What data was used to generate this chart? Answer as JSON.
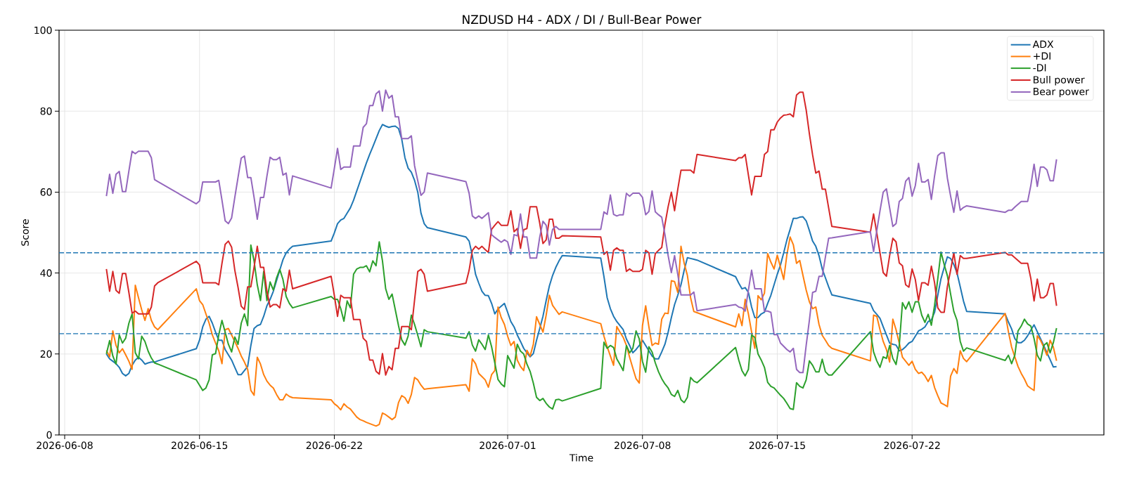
{
  "chart_data": {
    "type": "line",
    "title": "NZDUSD H4 - ADX / DI / Bull-Bear Power",
    "xlabel": "Time",
    "ylabel": "Score",
    "x": [
      "2026-06-10T04:00",
      "2026-06-10T08:00",
      "2026-06-10T12:00",
      "2026-06-10T16:00",
      "2026-06-10T20:00",
      "2026-06-11T00:00",
      "2026-06-11T04:00",
      "2026-06-11T08:00",
      "2026-06-11T12:00",
      "2026-06-11T16:00",
      "2026-06-11T20:00",
      "2026-06-12T00:00",
      "2026-06-12T04:00",
      "2026-06-12T08:00",
      "2026-06-12T12:00",
      "2026-06-12T16:00",
      "2026-06-12T20:00",
      "2026-06-14T20:00",
      "2026-06-15T00:00",
      "2026-06-15T04:00",
      "2026-06-15T08:00",
      "2026-06-15T12:00",
      "2026-06-15T16:00",
      "2026-06-15T20:00",
      "2026-06-16T00:00",
      "2026-06-16T04:00",
      "2026-06-16T08:00",
      "2026-06-16T12:00",
      "2026-06-16T16:00",
      "2026-06-16T20:00",
      "2026-06-17T00:00",
      "2026-06-17T04:00",
      "2026-06-17T08:00",
      "2026-06-17T12:00",
      "2026-06-17T16:00",
      "2026-06-17T20:00",
      "2026-06-18T00:00",
      "2026-06-18T04:00",
      "2026-06-18T08:00",
      "2026-06-18T12:00",
      "2026-06-18T16:00",
      "2026-06-18T20:00",
      "2026-06-19T00:00",
      "2026-06-19T04:00",
      "2026-06-19T08:00",
      "2026-06-19T12:00",
      "2026-06-19T16:00",
      "2026-06-19T20:00",
      "2026-06-21T20:00",
      "2026-06-22T00:00",
      "2026-06-22T04:00",
      "2026-06-22T08:00",
      "2026-06-22T12:00",
      "2026-06-22T16:00",
      "2026-06-22T20:00",
      "2026-06-23T00:00",
      "2026-06-23T04:00",
      "2026-06-23T08:00",
      "2026-06-23T12:00",
      "2026-06-23T16:00",
      "2026-06-23T20:00",
      "2026-06-24T00:00",
      "2026-06-24T04:00",
      "2026-06-24T08:00",
      "2026-06-24T12:00",
      "2026-06-24T16:00",
      "2026-06-24T20:00",
      "2026-06-25T00:00",
      "2026-06-25T04:00",
      "2026-06-25T08:00",
      "2026-06-25T12:00",
      "2026-06-25T16:00",
      "2026-06-25T20:00",
      "2026-06-26T00:00",
      "2026-06-26T04:00",
      "2026-06-26T08:00",
      "2026-06-26T12:00",
      "2026-06-26T16:00",
      "2026-06-26T20:00",
      "2026-06-28T20:00",
      "2026-06-29T00:00",
      "2026-06-29T04:00",
      "2026-06-29T08:00",
      "2026-06-29T12:00",
      "2026-06-29T16:00",
      "2026-06-29T20:00",
      "2026-06-30T00:00",
      "2026-06-30T04:00",
      "2026-06-30T08:00",
      "2026-06-30T12:00",
      "2026-06-30T16:00",
      "2026-06-30T20:00",
      "2026-07-01T00:00",
      "2026-07-01T04:00",
      "2026-07-01T08:00",
      "2026-07-01T12:00",
      "2026-07-01T16:00",
      "2026-07-01T20:00",
      "2026-07-02T00:00",
      "2026-07-02T04:00",
      "2026-07-02T08:00",
      "2026-07-02T12:00",
      "2026-07-02T16:00",
      "2026-07-02T20:00",
      "2026-07-03T00:00",
      "2026-07-03T04:00",
      "2026-07-03T08:00",
      "2026-07-03T12:00",
      "2026-07-03T16:00",
      "2026-07-03T20:00",
      "2026-07-05T20:00",
      "2026-07-06T00:00",
      "2026-07-06T04:00",
      "2026-07-06T08:00",
      "2026-07-06T12:00",
      "2026-07-06T16:00",
      "2026-07-06T20:00",
      "2026-07-07T00:00",
      "2026-07-07T04:00",
      "2026-07-07T08:00",
      "2026-07-07T12:00",
      "2026-07-07T16:00",
      "2026-07-07T20:00",
      "2026-07-08T00:00",
      "2026-07-08T04:00",
      "2026-07-08T08:00",
      "2026-07-08T12:00",
      "2026-07-08T16:00",
      "2026-07-08T20:00",
      "2026-07-09T00:00",
      "2026-07-09T04:00",
      "2026-07-09T08:00",
      "2026-07-09T12:00",
      "2026-07-09T16:00",
      "2026-07-09T20:00",
      "2026-07-10T00:00",
      "2026-07-10T04:00",
      "2026-07-10T08:00",
      "2026-07-10T12:00",
      "2026-07-10T16:00",
      "2026-07-10T20:00",
      "2026-07-12T20:00",
      "2026-07-13T00:00",
      "2026-07-13T04:00",
      "2026-07-13T08:00",
      "2026-07-13T12:00",
      "2026-07-13T16:00",
      "2026-07-13T20:00",
      "2026-07-14T00:00",
      "2026-07-14T04:00",
      "2026-07-14T08:00",
      "2026-07-14T12:00",
      "2026-07-14T16:00",
      "2026-07-14T20:00",
      "2026-07-15T00:00",
      "2026-07-15T04:00",
      "2026-07-15T08:00",
      "2026-07-15T12:00",
      "2026-07-15T16:00",
      "2026-07-15T20:00",
      "2026-07-16T00:00",
      "2026-07-16T04:00",
      "2026-07-16T08:00",
      "2026-07-16T12:00",
      "2026-07-16T16:00",
      "2026-07-16T20:00",
      "2026-07-17T00:00",
      "2026-07-17T04:00",
      "2026-07-17T08:00",
      "2026-07-17T12:00",
      "2026-07-17T16:00",
      "2026-07-17T20:00",
      "2026-07-19T20:00",
      "2026-07-20T00:00",
      "2026-07-20T04:00",
      "2026-07-20T08:00",
      "2026-07-20T12:00",
      "2026-07-20T16:00",
      "2026-07-20T20:00",
      "2026-07-21T00:00",
      "2026-07-21T04:00",
      "2026-07-21T08:00",
      "2026-07-21T12:00",
      "2026-07-21T16:00",
      "2026-07-21T20:00",
      "2026-07-22T00:00",
      "2026-07-22T04:00",
      "2026-07-22T08:00",
      "2026-07-22T12:00",
      "2026-07-22T16:00",
      "2026-07-22T20:00",
      "2026-07-23T00:00",
      "2026-07-23T04:00",
      "2026-07-23T08:00",
      "2026-07-23T12:00",
      "2026-07-23T16:00",
      "2026-07-23T20:00",
      "2026-07-24T00:00",
      "2026-07-24T04:00",
      "2026-07-24T08:00",
      "2026-07-24T12:00",
      "2026-07-24T16:00",
      "2026-07-24T20:00",
      "2026-07-26T20:00",
      "2026-07-27T00:00",
      "2026-07-27T04:00",
      "2026-07-27T08:00",
      "2026-07-27T12:00",
      "2026-07-27T16:00",
      "2026-07-27T20:00",
      "2026-07-28T00:00",
      "2026-07-28T04:00",
      "2026-07-28T08:00",
      "2026-07-28T12:00",
      "2026-07-28T16:00",
      "2026-07-28T20:00",
      "2026-07-29T00:00",
      "2026-07-29T04:00",
      "2026-07-29T08:00",
      "2026-07-29T12:00"
    ],
    "series": [
      {
        "name": "ADX",
        "color": "#1f77b4",
        "values": [
          20,
          18.8,
          18.2,
          17.6,
          16.7,
          15.2,
          14.6,
          15.2,
          17.2,
          18.5,
          19.2,
          18.5,
          17.5,
          17.8,
          18,
          18,
          18.3,
          21.3,
          23.4,
          26.7,
          28.6,
          29.3,
          27.6,
          25.4,
          23.4,
          23.4,
          21.1,
          19.8,
          18.5,
          16.7,
          14.9,
          14.9,
          15.9,
          16.9,
          22.1,
          26.3,
          27,
          27.3,
          29.3,
          31.9,
          33.5,
          35.5,
          38.1,
          40.7,
          43.3,
          45,
          45.9,
          46.6,
          47.9,
          49.9,
          52.2,
          53.1,
          53.5,
          54.8,
          56.1,
          58,
          60.3,
          62.6,
          64.9,
          67.2,
          69.3,
          71.2,
          73.2,
          75.2,
          76.7,
          76.3,
          76,
          76.2,
          76.3,
          75.7,
          73.1,
          68.5,
          65.9,
          64.9,
          62.9,
          60,
          54.8,
          52.2,
          51.2,
          48.9,
          47.9,
          44.3,
          39.7,
          37.5,
          35.5,
          34.5,
          34.4,
          32.5,
          29.9,
          31.1,
          31.8,
          32.5,
          30.3,
          28,
          26.7,
          24.7,
          23.1,
          21.4,
          20.3,
          19.3,
          20.1,
          23.4,
          26.3,
          29.3,
          33.2,
          36.8,
          39.4,
          41.4,
          43,
          44.3,
          43.7,
          39.1,
          33.9,
          31.2,
          29.3,
          28,
          27,
          26,
          23.7,
          22.1,
          20.3,
          21.1,
          22.1,
          23.4,
          22.1,
          20.8,
          19.5,
          18.8,
          18.8,
          20.5,
          22.4,
          25.4,
          29,
          32.2,
          34.5,
          37.1,
          40.7,
          43.8,
          43.6,
          43.4,
          43.2,
          39.1,
          37.5,
          36.1,
          36.4,
          35.2,
          31.6,
          29,
          29,
          29.9,
          30.3,
          32.5,
          34.5,
          37.1,
          39.7,
          42,
          45,
          48.2,
          50.8,
          53.5,
          53.5,
          53.8,
          53.9,
          52.9,
          50.5,
          47.9,
          46.6,
          44.3,
          41,
          38.8,
          36.6,
          34.6,
          32.5,
          30.7,
          29.8,
          28.8,
          26.7,
          24.7,
          22.7,
          22.4,
          22.2,
          20.8,
          21.1,
          21.8,
          22.7,
          23.1,
          24.4,
          25.7,
          26.1,
          26.7,
          28,
          28.4,
          30.3,
          34.5,
          38.6,
          41.4,
          44,
          43.6,
          42.1,
          40,
          36.6,
          33.1,
          30.5,
          29.9,
          27.9,
          26.2,
          23.8,
          22.8,
          22.8,
          23.4,
          24.5,
          25.9,
          27.2,
          25.5,
          23.8,
          22.1,
          20.3,
          18.6,
          16.8,
          16.9
        ]
      },
      {
        "name": "+DI",
        "color": "#ff7f0e",
        "values": [
          20.9,
          19.3,
          25.7,
          22.1,
          20.3,
          21.3,
          19.8,
          18.2,
          16.2,
          37,
          33.9,
          30.9,
          28.3,
          31.2,
          28.3,
          26.7,
          26,
          36.1,
          33.2,
          32.2,
          29.9,
          27.6,
          24.7,
          22.7,
          20.8,
          17.6,
          26,
          26.3,
          24.7,
          23.1,
          21.4,
          19.5,
          18,
          16.2,
          11,
          9.8,
          19.2,
          17.5,
          14.9,
          13.3,
          12.3,
          11.6,
          10,
          8.7,
          8.7,
          10.1,
          9.5,
          9.2,
          8.7,
          7.7,
          7.1,
          6.2,
          7.7,
          6.9,
          6.4,
          5.4,
          4.4,
          3.8,
          3.5,
          3.1,
          2.8,
          2.5,
          2.2,
          2.6,
          5.4,
          5,
          4.4,
          3.8,
          4.4,
          8,
          9.7,
          9.2,
          7.8,
          10,
          14.2,
          13.6,
          12.3,
          11.3,
          11.4,
          12.4,
          10.8,
          18.8,
          17.6,
          15.2,
          14.4,
          13.6,
          11.8,
          14.9,
          15.9,
          31.6,
          29,
          27.3,
          24.4,
          22.1,
          23.1,
          18.5,
          16.9,
          15.9,
          20.9,
          19.5,
          22.4,
          29.2,
          27.3,
          25.4,
          29.6,
          34.5,
          32,
          30.9,
          29.8,
          30.4,
          27.5,
          24.4,
          21.8,
          19.5,
          17.2,
          26.8,
          25.4,
          24.1,
          22.1,
          19.2,
          16.5,
          13.9,
          12.8,
          27,
          31.9,
          26.7,
          22.1,
          22.7,
          22.4,
          28.6,
          30.1,
          30,
          38.1,
          37.9,
          35.2,
          46.6,
          42.4,
          39.4,
          33.9,
          30.5,
          30.2,
          26.7,
          29.9,
          27,
          33.5,
          29.9,
          25.4,
          21.4,
          34.4,
          33.4,
          35,
          44.8,
          42.7,
          41,
          44.4,
          41.4,
          38.4,
          44.6,
          48.9,
          47,
          42.4,
          43.1,
          39.4,
          35.8,
          32.9,
          31.2,
          31.6,
          27.3,
          24.6,
          23.4,
          22.1,
          21.4,
          18.3,
          29.6,
          29.3,
          26,
          23.1,
          21.1,
          18,
          28.6,
          26,
          22.7,
          19.2,
          18.2,
          17.2,
          18.2,
          16.2,
          15.2,
          15.5,
          14.6,
          13.2,
          14.7,
          11.7,
          9.7,
          7.9,
          7.5,
          7,
          14.5,
          16.4,
          15.2,
          20.8,
          18.9,
          18.1,
          30,
          25.5,
          21.7,
          19.3,
          16.9,
          15.2,
          13.8,
          12.1,
          11.5,
          11,
          24.5,
          23.4,
          21.7,
          19.7,
          23.4,
          21.7,
          18.3
        ]
      },
      {
        "name": "-DI",
        "color": "#2ca02c",
        "values": [
          20,
          23.3,
          19.5,
          17.5,
          24.7,
          22.7,
          23.9,
          27.6,
          29.9,
          20.3,
          18.8,
          24.4,
          23.1,
          20.7,
          19,
          17.8,
          17.5,
          13.6,
          12.3,
          11,
          11.6,
          13.6,
          19.8,
          20.1,
          24.7,
          28.3,
          25.4,
          22.4,
          20.5,
          24.2,
          22.4,
          27.6,
          29.9,
          27,
          46.9,
          43,
          37.1,
          33.2,
          40.4,
          33.2,
          37.8,
          35.8,
          38.8,
          40.9,
          38.4,
          34.2,
          32.5,
          31.4,
          34.2,
          33.5,
          33.5,
          31.2,
          28.1,
          33.1,
          31.4,
          39.7,
          41,
          41.4,
          41.4,
          41.8,
          40.3,
          43,
          41.8,
          47.7,
          43,
          36.1,
          33.5,
          34.8,
          30.9,
          27,
          23.5,
          22.2,
          24.4,
          29.6,
          27.3,
          24.6,
          21.8,
          26,
          25.5,
          23.9,
          25.5,
          22.2,
          20.7,
          23.5,
          22.4,
          21.1,
          24.7,
          21.8,
          17.8,
          13.7,
          12.6,
          11.9,
          19.6,
          18,
          16.5,
          22.4,
          20.7,
          20,
          17.5,
          15.7,
          12.8,
          9.3,
          8.5,
          9,
          7.8,
          6.9,
          6.4,
          8.7,
          8.8,
          8.4,
          11.5,
          22.9,
          21.4,
          22.1,
          21.6,
          18.8,
          17.4,
          15.9,
          22.1,
          20.3,
          21.4,
          25.7,
          23.7,
          18.2,
          15.5,
          21.8,
          20.5,
          17.8,
          15.6,
          13.9,
          12.6,
          11.6,
          10,
          9.5,
          11,
          8.7,
          8,
          9.3,
          14.2,
          13.3,
          12.9,
          21.6,
          18.5,
          15.9,
          14.6,
          16.2,
          24.7,
          24.1,
          20,
          18.5,
          16.7,
          13,
          12,
          11.6,
          10.7,
          9.8,
          9,
          7.8,
          6.5,
          6.3,
          12.9,
          12,
          11.6,
          13.6,
          18.3,
          17.2,
          15.6,
          15.6,
          18.7,
          15.6,
          14.8,
          14.8,
          25.5,
          20.5,
          18.3,
          16.7,
          19.3,
          18.9,
          22.1,
          18.9,
          17.4,
          22.1,
          32.7,
          31.1,
          32.9,
          30.3,
          32.9,
          32.9,
          29.6,
          27.8,
          29.8,
          27.1,
          32,
          38.6,
          45.2,
          42.1,
          39.3,
          34.8,
          30.5,
          28.3,
          23.1,
          20.7,
          21.5,
          18.4,
          19.7,
          17.6,
          19.7,
          25.7,
          26.9,
          28.6,
          27.4,
          26.9,
          23.8,
          19.7,
          18.3,
          22.1,
          22.8,
          20.3,
          22.8,
          26.4
        ]
      },
      {
        "name": "Bull power",
        "color": "#d62728",
        "values": [
          41,
          35.5,
          40.4,
          35.7,
          35,
          39.9,
          39.9,
          35.2,
          30.1,
          30.6,
          29.9,
          29.9,
          29.9,
          29.9,
          31.6,
          36.8,
          37.6,
          42.9,
          42,
          37.6,
          37.6,
          37.6,
          37.6,
          37.6,
          37.1,
          42.4,
          47.1,
          47.9,
          46.4,
          40.7,
          36.5,
          31.8,
          31,
          36.6,
          36.6,
          41.4,
          46.6,
          41.4,
          41.4,
          35.5,
          31.6,
          32.2,
          32.2,
          31.4,
          36.1,
          35.5,
          40.7,
          36.1,
          39.2,
          34.5,
          29.3,
          34.5,
          33.9,
          33.9,
          33.9,
          28.5,
          28.5,
          28.5,
          23.9,
          23.1,
          18.5,
          18.5,
          15.7,
          15,
          20.1,
          14.8,
          16.9,
          16.1,
          21.4,
          21.4,
          26.8,
          26.8,
          26.8,
          26,
          33.3,
          40.4,
          40.9,
          39.7,
          35.5,
          37.5,
          40.7,
          45.6,
          46.6,
          45.9,
          46.6,
          45.8,
          45.1,
          50.8,
          51.8,
          52.7,
          51.8,
          51.8,
          51.8,
          55.4,
          50.2,
          51,
          46.1,
          50.7,
          51,
          56.4,
          56.4,
          56.4,
          52.3,
          47.3,
          48.2,
          53.3,
          53.3,
          48.6,
          48.6,
          49.2,
          48.9,
          44.6,
          45.3,
          40.7,
          45.6,
          46.2,
          45.6,
          45.6,
          40.4,
          41,
          40.4,
          40.4,
          40.4,
          40.9,
          45.6,
          45,
          39.7,
          44.8,
          45.6,
          46.3,
          52,
          56.4,
          60,
          55.4,
          60.7,
          65.4,
          65.4,
          65.4,
          65.4,
          64.7,
          69.3,
          67.8,
          68.5,
          68.5,
          69.3,
          64.2,
          59.3,
          63.9,
          63.9,
          63.9,
          69.3,
          70,
          75.4,
          75.4,
          77.3,
          78.3,
          79,
          79.1,
          79.3,
          78.6,
          84,
          84.7,
          84.7,
          80.3,
          74.4,
          69.2,
          64.7,
          65.2,
          60.7,
          60.7,
          56.1,
          51.5,
          50.1,
          54.6,
          49.9,
          45,
          40.1,
          39.2,
          44.3,
          48.6,
          47.7,
          42.5,
          41.8,
          37.1,
          36.5,
          41,
          38.4,
          33.2,
          37.6,
          37.6,
          37,
          41.7,
          37.6,
          31.4,
          30.3,
          30.3,
          36.7,
          40.7,
          45,
          39.7,
          44.3,
          43.6,
          43.6,
          45.1,
          44.5,
          44.5,
          43.8,
          43.1,
          42.4,
          42.4,
          42.4,
          38.6,
          33.1,
          38.5,
          33.9,
          33.9,
          34.6,
          37.4,
          37.4,
          31.9
        ]
      },
      {
        "name": "Bear power",
        "color": "#9467bd",
        "values": [
          59,
          64.4,
          59.7,
          64.4,
          65.1,
          60.1,
          60.1,
          65.2,
          70.1,
          69.5,
          70.1,
          70.1,
          70.1,
          70.1,
          68.5,
          63.1,
          62.6,
          57.1,
          57.8,
          62.5,
          62.5,
          62.5,
          62.5,
          62.5,
          62.9,
          58,
          52.9,
          52.2,
          53.6,
          58.7,
          63.6,
          68.4,
          68.9,
          63.6,
          63.6,
          58.7,
          53.3,
          58.7,
          58.7,
          63.9,
          68.6,
          68,
          68,
          68.6,
          64.2,
          64.7,
          59.3,
          64,
          61,
          65.8,
          70.8,
          65.6,
          66.2,
          66.2,
          66.2,
          71.4,
          71.4,
          71.4,
          76,
          76.9,
          81.4,
          81.4,
          84.3,
          85,
          80,
          85.2,
          83.2,
          83.9,
          78.6,
          78.6,
          73.2,
          73.2,
          73.2,
          73.9,
          66.5,
          62.8,
          59.2,
          60,
          64.7,
          62.6,
          59.7,
          54.1,
          53.5,
          54.1,
          53.5,
          54.2,
          54.9,
          49.5,
          48.8,
          48.2,
          47.6,
          48.2,
          47.7,
          44.6,
          49.5,
          49.2,
          54.6,
          48.9,
          48.9,
          43.7,
          43.7,
          43.7,
          48.9,
          52.8,
          51.8,
          46.9,
          50.8,
          51.5,
          50.8,
          50.8,
          50.8,
          55.1,
          54.5,
          59.3,
          54.5,
          54.1,
          54.4,
          54.4,
          59.7,
          59,
          59.7,
          59.7,
          59.7,
          58.7,
          54.4,
          55.2,
          60.3,
          55.1,
          54.4,
          53.8,
          49.5,
          44.3,
          40.1,
          44.3,
          39.7,
          34.6,
          34.6,
          34.6,
          34.6,
          35.3,
          30.7,
          32.2,
          31.6,
          31.4,
          30.6,
          35.8,
          40.7,
          36.1,
          36.1,
          36.1,
          30.6,
          30.6,
          30.3,
          24.8,
          24.8,
          22.7,
          21.9,
          21.1,
          20.5,
          21.4,
          16.2,
          15.4,
          15.4,
          22.1,
          28.3,
          35.2,
          35.5,
          39.2,
          39.2,
          44,
          48.6,
          48.7,
          50.2,
          45.3,
          50.5,
          55.4,
          60,
          60.8,
          56.1,
          51.5,
          52.2,
          57.7,
          58.4,
          62.7,
          63.6,
          59,
          61.6,
          67.1,
          62.5,
          62.5,
          63.1,
          58.2,
          64,
          69,
          69.7,
          69.7,
          63.4,
          59,
          55,
          60.3,
          55.5,
          56.2,
          56.6,
          55,
          55.5,
          55.5,
          56.3,
          57,
          57.7,
          57.7,
          57.7,
          61.7,
          66.9,
          61.4,
          66.2,
          66.2,
          65.5,
          62.8,
          62.8,
          68.1
        ]
      }
    ],
    "xlim": [
      "2026-06-07T17:00",
      "2026-07-31T23:00"
    ],
    "xticks": [
      "2026-06-08",
      "2026-06-15",
      "2026-06-22",
      "2026-07-01",
      "2026-07-08",
      "2026-07-15",
      "2026-07-22"
    ],
    "ylim": [
      0,
      100
    ],
    "yticks": [
      0,
      20,
      40,
      60,
      80,
      100
    ],
    "ref_lines": [
      {
        "axis": "y",
        "value": 45,
        "color": "#1f77b4",
        "line_style": "dashed"
      },
      {
        "axis": "y",
        "value": 25,
        "color": "#1f77b4",
        "line_style": "dashed"
      }
    ],
    "grid": true,
    "legend": "top right"
  }
}
